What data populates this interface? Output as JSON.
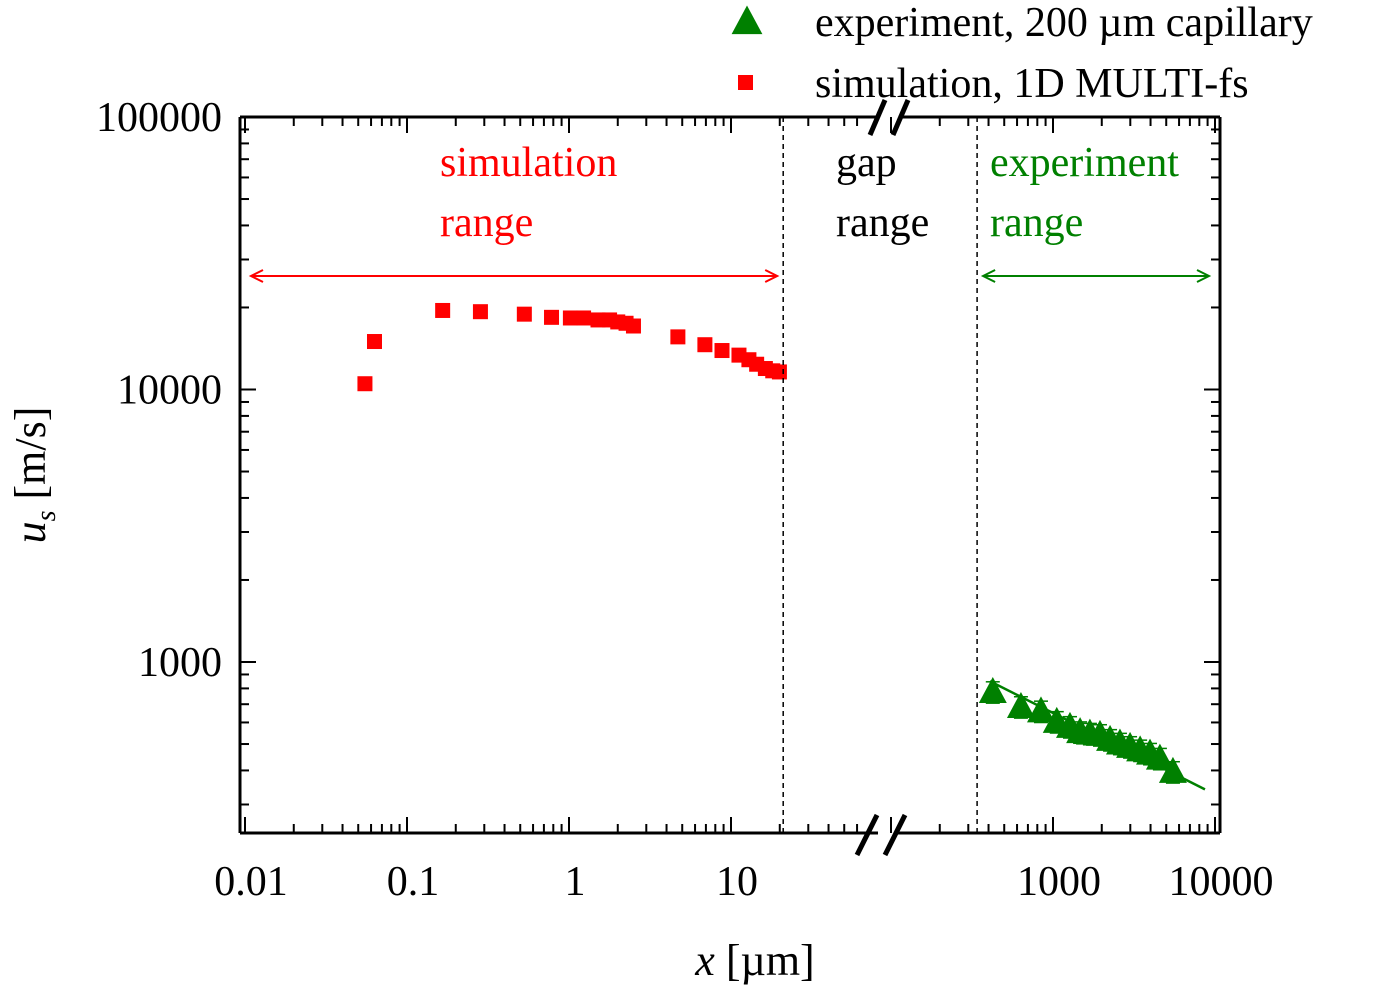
{
  "chart_data": {
    "type": "scatter",
    "xlabel": {
      "var": "x",
      "unit": " [µm]"
    },
    "ylabel": {
      "var": "u",
      "sub": "s",
      "unit": " [m/s]"
    },
    "x_scale": "log",
    "y_scale": "log",
    "x_axis_break": true,
    "x_segments": [
      [
        0.01,
        65
      ],
      [
        100,
        10000
      ]
    ],
    "ylim": [
      230,
      100000
    ],
    "x_tick_labels": [
      "0.01",
      "0.1",
      "1",
      "10",
      "1000",
      "10000"
    ],
    "x_tick_values": [
      0.01,
      0.1,
      1,
      10,
      1000,
      10000
    ],
    "y_tick_labels": [
      "100000",
      "10000",
      "1000"
    ],
    "y_tick_values": [
      100000,
      10000,
      1000
    ],
    "grid": false,
    "legend_position": "top-right",
    "series": [
      {
        "name": "experiment, 200 µm capillary",
        "marker": "triangle",
        "color": "#008000",
        "x": [
          425,
          634,
          843,
          1055,
          1273,
          1470,
          1690,
          1950,
          2250,
          2590,
          2990,
          3450,
          3970,
          4570,
          5500
        ],
        "y": [
          776,
          684,
          659,
          603,
          578,
          553,
          546,
          540,
          518,
          502,
          488,
          474,
          461,
          442,
          395
        ],
        "yerr_rel": 0.09
      },
      {
        "name": "simulation, 1D MULTI-fs",
        "marker": "square",
        "color": "#ff0000",
        "x": [
          0.055,
          0.063,
          0.166,
          0.284,
          0.53,
          0.78,
          1.02,
          1.23,
          1.51,
          1.78,
          2.0,
          2.25,
          2.5,
          4.7,
          6.9,
          8.8,
          11.2,
          12.9,
          14.4,
          16.3,
          18.1,
          19.9
        ],
        "y": [
          10500,
          15000,
          19500,
          19300,
          18900,
          18400,
          18300,
          18300,
          18000,
          18000,
          17700,
          17500,
          17100,
          15600,
          14600,
          13900,
          13370,
          12860,
          12380,
          11940,
          11710,
          11600
        ]
      }
    ],
    "fit_line": {
      "color": "#008000",
      "x": [
        408,
        8670
      ],
      "y": [
        850,
        341
      ]
    },
    "boundaries": [
      21,
      340
    ],
    "annotations": [
      {
        "lines": [
          "simulation",
          "range"
        ],
        "color": "#ff0000",
        "arrow_x": [
          0.01,
          21
        ]
      },
      {
        "lines": [
          "gap",
          "range"
        ],
        "color": "#000000"
      },
      {
        "lines": [
          "experiment",
          "range"
        ],
        "color": "#008000",
        "arrow_x": [
          340,
          10000
        ]
      }
    ]
  }
}
